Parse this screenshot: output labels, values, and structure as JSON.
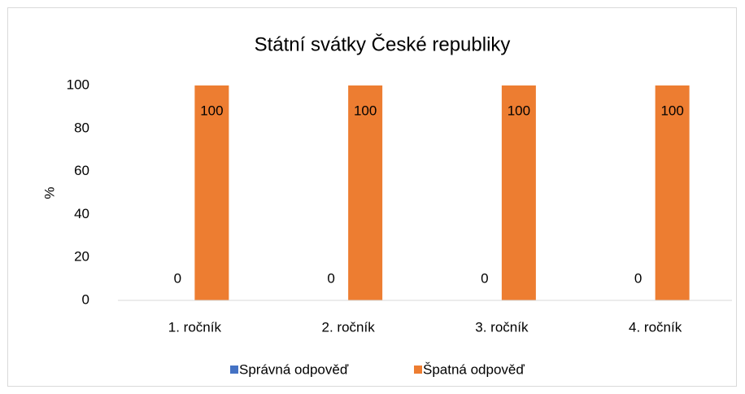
{
  "chart_data": {
    "type": "bar",
    "title": "Státní svátky České republiky",
    "y_label": "%",
    "categories": [
      "1. ročník",
      "2. ročník",
      "3. ročník",
      "4. ročník"
    ],
    "series": [
      {
        "name": "Správná odpověď",
        "color": "#4472c4",
        "values": [
          0,
          0,
          0,
          0
        ]
      },
      {
        "name": "Špatná odpověď",
        "color": "#ed7d31",
        "values": [
          100,
          100,
          100,
          100
        ]
      }
    ],
    "ylim": [
      0,
      100
    ],
    "yticks": [
      0,
      20,
      40,
      60,
      80,
      100
    ],
    "grid": false,
    "legend": "bottom"
  }
}
